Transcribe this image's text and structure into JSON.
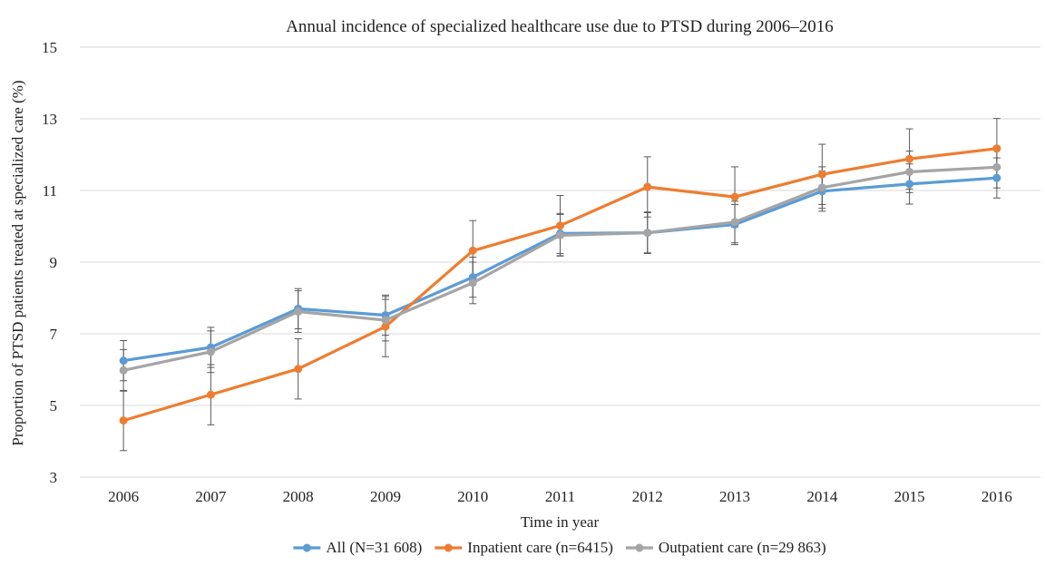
{
  "chart_data": {
    "type": "line",
    "title": "Annual incidence of specialized healthcare use due to PTSD during 2006–2016",
    "xlabel": "Time in year",
    "ylabel": "Proportion of PTSD patients treated at specialized care (%)",
    "categories": [
      "2006",
      "2007",
      "2008",
      "2009",
      "2010",
      "2011",
      "2012",
      "2013",
      "2014",
      "2015",
      "2016"
    ],
    "ylim": [
      3,
      15
    ],
    "yticks": [
      "3",
      "5",
      "7",
      "9",
      "11",
      "13",
      "15"
    ],
    "grid": true,
    "legend_position": "bottom",
    "series": [
      {
        "name": "All (N=31 608)",
        "color": "#5b9bd5",
        "values": [
          6.25,
          6.62,
          7.7,
          7.52,
          8.58,
          9.8,
          9.82,
          10.05,
          10.98,
          11.18,
          11.35
        ],
        "err": [
          0.56,
          0.56,
          0.56,
          0.56,
          0.56,
          0.56,
          0.56,
          0.56,
          0.56,
          0.56,
          0.56
        ]
      },
      {
        "name": "Inpatient care (n=6415)",
        "color": "#ed7d31",
        "values": [
          4.58,
          5.3,
          6.02,
          7.2,
          9.32,
          10.02,
          11.1,
          10.82,
          11.45,
          11.88,
          12.17
        ],
        "err": [
          0.84,
          0.84,
          0.84,
          0.84,
          0.84,
          0.84,
          0.84,
          0.84,
          0.84,
          0.84,
          0.84
        ]
      },
      {
        "name": "Outpatient care (n=29 863)",
        "color": "#a5a5a5",
        "values": [
          5.98,
          6.5,
          7.62,
          7.38,
          8.42,
          9.75,
          9.82,
          10.12,
          11.08,
          11.52,
          11.65
        ],
        "err": [
          0.58,
          0.58,
          0.58,
          0.58,
          0.58,
          0.58,
          0.58,
          0.58,
          0.58,
          0.58,
          0.58
        ]
      }
    ]
  }
}
